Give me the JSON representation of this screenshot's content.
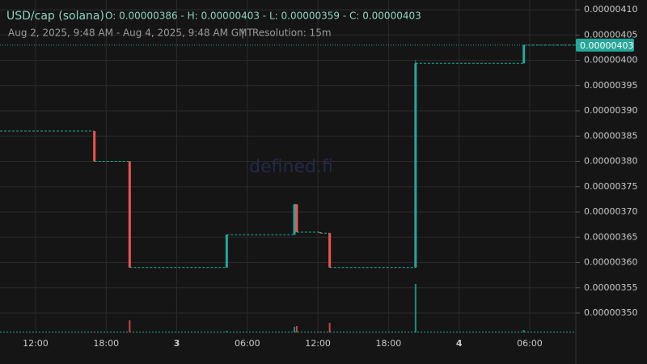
{
  "chart_data": {
    "type": "candlestick",
    "title": "USD/cap (solana)",
    "ohlc_text": "O: 0.00000386 - H: 0.00000403 - L: 0.00000359 - C: 0.00000403",
    "range_text": "Aug 2, 2025, 9:48 AM - Aug 4, 2025, 9:48 AM GMT",
    "separator": "|",
    "resolution_text": "Resolution: 15m",
    "watermark": "defined.fi",
    "up_color": "#26a69a",
    "down_color": "#ef5350",
    "grid": true,
    "start_price": 3.86e-06,
    "x": [
      17.0,
      20.0,
      28.25,
      34.0,
      34.2,
      36.2,
      37.0,
      44.3,
      53.5
    ],
    "open": [
      3.86e-06,
      3.8e-06,
      3.59e-06,
      3.655e-06,
      3.715e-06,
      3.66e-06,
      3.658e-06,
      3.59e-06,
      3.994e-06
    ],
    "high": [
      3.86e-06,
      3.8e-06,
      3.655e-06,
      3.715e-06,
      3.715e-06,
      3.66e-06,
      3.658e-06,
      4e-06,
      4.03e-06
    ],
    "low": [
      3.8e-06,
      3.59e-06,
      3.59e-06,
      3.655e-06,
      3.66e-06,
      3.658e-06,
      3.59e-06,
      3.59e-06,
      3.994e-06
    ],
    "close": [
      3.8e-06,
      3.59e-06,
      3.655e-06,
      3.715e-06,
      3.66e-06,
      3.658e-06,
      3.59e-06,
      3.994e-06,
      4.03e-06
    ],
    "volume": [
      1,
      15,
      2,
      7,
      8,
      1,
      12,
      60,
      3
    ],
    "last_price": {
      "value": 4.03e-06,
      "label": "0.00000403"
    },
    "xlim": [
      8.98,
      57.92
    ],
    "xticks": [
      {
        "value": 12,
        "label": "12:00"
      },
      {
        "value": 18,
        "label": "18:00"
      },
      {
        "value": 24,
        "label": "3"
      },
      {
        "value": 30,
        "label": "06:00"
      },
      {
        "value": 36,
        "label": "12:00"
      },
      {
        "value": 42,
        "label": "18:00"
      },
      {
        "value": 48,
        "label": "4"
      },
      {
        "value": 54,
        "label": "06:00"
      }
    ],
    "ylim": [
      3.4616e-06,
      4.1192e-06
    ],
    "yticks": [
      {
        "value": 3.5e-06,
        "label": "0.00000350"
      },
      {
        "value": 3.55e-06,
        "label": "0.00000355"
      },
      {
        "value": 3.6e-06,
        "label": "0.00000360"
      },
      {
        "value": 3.65e-06,
        "label": "0.00000365"
      },
      {
        "value": 3.7e-06,
        "label": "0.00000370"
      },
      {
        "value": 3.75e-06,
        "label": "0.00000375"
      },
      {
        "value": 3.8e-06,
        "label": "0.00000380"
      },
      {
        "value": 3.85e-06,
        "label": "0.00000385"
      },
      {
        "value": 3.9e-06,
        "label": "0.00000390"
      },
      {
        "value": 3.95e-06,
        "label": "0.00000395"
      },
      {
        "value": 4e-06,
        "label": "0.00000400"
      },
      {
        "value": 4.05e-06,
        "label": "0.00000405"
      },
      {
        "value": 4.1e-06,
        "label": "0.00000410"
      }
    ]
  }
}
